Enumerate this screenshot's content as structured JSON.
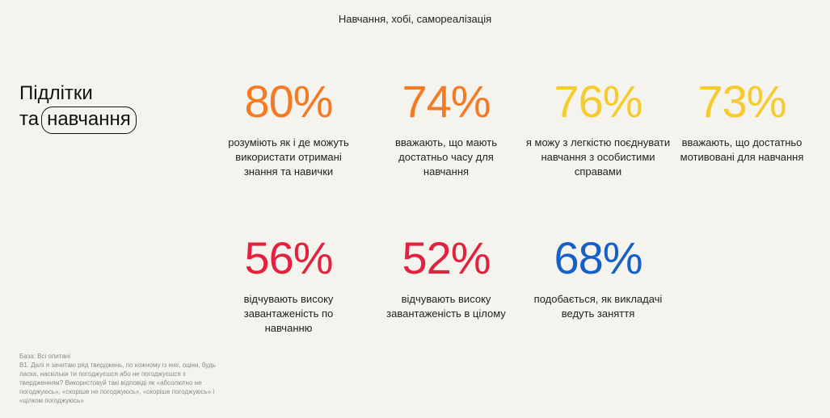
{
  "header": {
    "section": "Навчання, хобі, самореалізація"
  },
  "title": {
    "line1": "Підлітки",
    "prefix": "та",
    "boxed": "навчання"
  },
  "colors": {
    "orange": "#f47a24",
    "yellow": "#f6cb2e",
    "red": "#e3223f",
    "blue": "#1560c9",
    "background": "#f5f3ee"
  },
  "stats": [
    {
      "value": "80%",
      "color": "#f47a24",
      "caption": "розуміють як і де можуть використати отримані знання та навички"
    },
    {
      "value": "74%",
      "color": "#f47a24",
      "caption": "вважають, що мають достатньо часу для навчання"
    },
    {
      "value": "76%",
      "color": "#f6cb2e",
      "caption": "я можу з легкістю поєднувати навчання з особистими справами"
    },
    {
      "value": "73%",
      "color": "#f6cb2e",
      "caption": "вважають, що достатньо мотивовані для навчання"
    },
    {
      "value": "56%",
      "color": "#e3223f",
      "caption": "відчувають високу завантаженість по навчанню"
    },
    {
      "value": "52%",
      "color": "#e3223f",
      "caption": "відчувають високу завантаженість в цілому"
    },
    {
      "value": "68%",
      "color": "#1560c9",
      "caption": "подобається, як викладачі ведуть заняття"
    }
  ],
  "footnote": {
    "base": "База: Всі опитані",
    "question": "В1. Далі я зачитаю ряд тверджень, по кожному із них, оціни, будь ласка, наскільки ти погоджуєшся або не погоджуєшся з твердженням? Використовуй такі відповіді як «абсолютно не погоджуюсь», «скоріше не погоджуюсь», «скоріше погоджуюсь» і «цілком погоджуюсь»"
  }
}
